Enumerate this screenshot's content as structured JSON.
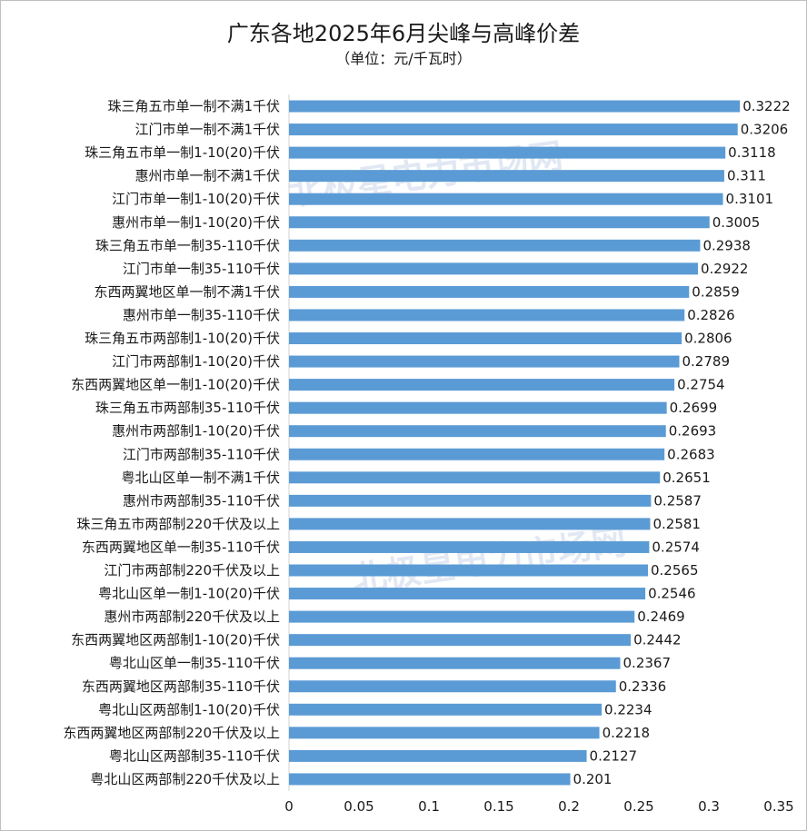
{
  "chart_data": {
    "type": "bar",
    "orientation": "horizontal",
    "title": "广东各地2025年6月尖峰与高峰价差",
    "subtitle": "（单位：元/千瓦时）",
    "categories": [
      "珠三角五市单一制不满1千伏",
      "江门市单一制不满1千伏",
      "珠三角五市单一制1-10(20)千伏",
      "惠州市单一制不满1千伏",
      "江门市单一制1-10(20)千伏",
      "惠州市单一制1-10(20)千伏",
      "珠三角五市单一制35-110千伏",
      "江门市单一制35-110千伏",
      "东西两翼地区单一制不满1千伏",
      "惠州市单一制35-110千伏",
      "珠三角五市两部制1-10(20)千伏",
      "江门市两部制1-10(20)千伏",
      "东西两翼地区单一制1-10(20)千伏",
      "珠三角五市两部制35-110千伏",
      "惠州市两部制1-10(20)千伏",
      "江门市两部制35-110千伏",
      "粤北山区单一制不满1千伏",
      "惠州市两部制35-110千伏",
      "珠三角五市两部制220千伏及以上",
      "东西两翼地区单一制35-110千伏",
      "江门市两部制220千伏及以上",
      "粤北山区单一制1-10(20)千伏",
      "惠州市两部制220千伏及以上",
      "东西两翼地区两部制1-10(20)千伏",
      "粤北山区单一制35-110千伏",
      "东西两翼地区两部制35-110千伏",
      "粤北山区两部制1-10(20)千伏",
      "东西两翼地区两部制220千伏及以上",
      "粤北山区两部制35-110千伏",
      "粤北山区两部制220千伏及以上"
    ],
    "values": [
      0.3222,
      0.3206,
      0.3118,
      0.311,
      0.3101,
      0.3005,
      0.2938,
      0.2922,
      0.2859,
      0.2826,
      0.2806,
      0.2789,
      0.2754,
      0.2699,
      0.2693,
      0.2683,
      0.2651,
      0.2587,
      0.2581,
      0.2574,
      0.2565,
      0.2546,
      0.2469,
      0.2442,
      0.2367,
      0.2336,
      0.2234,
      0.2218,
      0.2127,
      0.201
    ],
    "value_labels": [
      "0.3222",
      "0.3206",
      "0.3118",
      "0.311",
      "0.3101",
      "0.3005",
      "0.2938",
      "0.2922",
      "0.2859",
      "0.2826",
      "0.2806",
      "0.2789",
      "0.2754",
      "0.2699",
      "0.2693",
      "0.2683",
      "0.2651",
      "0.2587",
      "0.2581",
      "0.2574",
      "0.2565",
      "0.2546",
      "0.2469",
      "0.2442",
      "0.2367",
      "0.2336",
      "0.2234",
      "0.2218",
      "0.2127",
      "0.201"
    ],
    "xlim": [
      0,
      0.35
    ],
    "x_ticks": [
      0,
      0.05,
      0.1,
      0.15,
      0.2,
      0.25,
      0.3,
      0.35
    ],
    "x_tick_labels": [
      "0",
      "0.05",
      "0.1",
      "0.15",
      "0.2",
      "0.25",
      "0.3",
      "0.35"
    ],
    "xlabel": "",
    "ylabel": "",
    "grid": false,
    "legend": "none",
    "bar_color": "#5b9bd5",
    "watermark": "北极星电力市场网",
    "watermark_color": "#c9d7ea"
  }
}
